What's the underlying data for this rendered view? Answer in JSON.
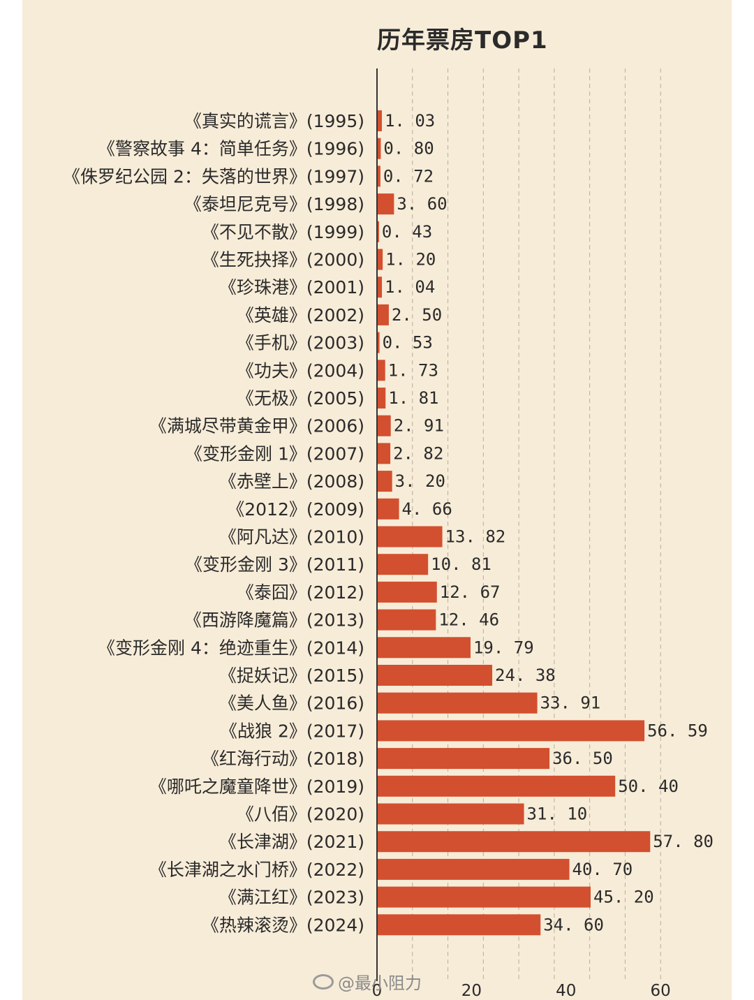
{
  "chart_data": {
    "type": "bar",
    "orientation": "horizontal",
    "title": "历年票房TOP1",
    "categories": [
      "《真实的谎言》(1995)",
      "《警察故事 4：简单任务》(1996)",
      "《侏罗纪公园 2：失落的世界》(1997)",
      "《泰坦尼克号》(1998)",
      "《不见不散》(1999)",
      "《生死抉择》(2000)",
      "《珍珠港》(2001)",
      "《英雄》(2002)",
      "《手机》(2003)",
      "《功夫》(2004)",
      "《无极》(2005)",
      "《满城尽带黄金甲》(2006)",
      "《变形金刚 1》(2007)",
      "《赤壁上》(2008)",
      "《2012》(2009)",
      "《阿凡达》(2010)",
      "《变形金刚 3》(2011)",
      "《泰囧》(2012)",
      "《西游降魔篇》(2013)",
      "《变形金刚 4：绝迹重生》(2014)",
      "《捉妖记》(2015)",
      "《美人鱼》(2016)",
      "《战狼 2》(2017)",
      "《红海行动》(2018)",
      "《哪吒之魔童降世》(2019)",
      "《八佰》(2020)",
      "《长津湖》(2021)",
      "《长津湖之水门桥》(2022)",
      "《满江红》(2023)",
      "《热辣滚烫》(2024)"
    ],
    "values": [
      1.03,
      0.8,
      0.72,
      3.6,
      0.43,
      1.2,
      1.04,
      2.5,
      0.53,
      1.73,
      1.81,
      2.91,
      2.82,
      3.2,
      4.66,
      13.82,
      10.81,
      12.67,
      12.46,
      19.79,
      24.38,
      33.91,
      56.59,
      36.5,
      50.4,
      31.1,
      57.8,
      40.7,
      45.2,
      34.6
    ],
    "value_labels": [
      "1. 03",
      "0. 80",
      "0. 72",
      "3. 60",
      "0. 43",
      "1. 20",
      "1. 04",
      "2. 50",
      "0. 53",
      "1. 73",
      "1. 81",
      "2. 91",
      "2. 82",
      "3. 20",
      "4. 66",
      "13. 82",
      "10. 81",
      "12. 67",
      "12. 46",
      "19. 79",
      "24. 38",
      "33. 91",
      "56. 59",
      "36. 50",
      "50. 40",
      "31. 10",
      "57. 80",
      "40. 70",
      "45. 20",
      "34. 60"
    ],
    "x_ticks": [
      0,
      20,
      40,
      60
    ],
    "xlim": [
      0,
      60
    ],
    "grid": "vertical dashed",
    "bar_color": "#d2502f"
  },
  "watermark": "@最小阻力"
}
